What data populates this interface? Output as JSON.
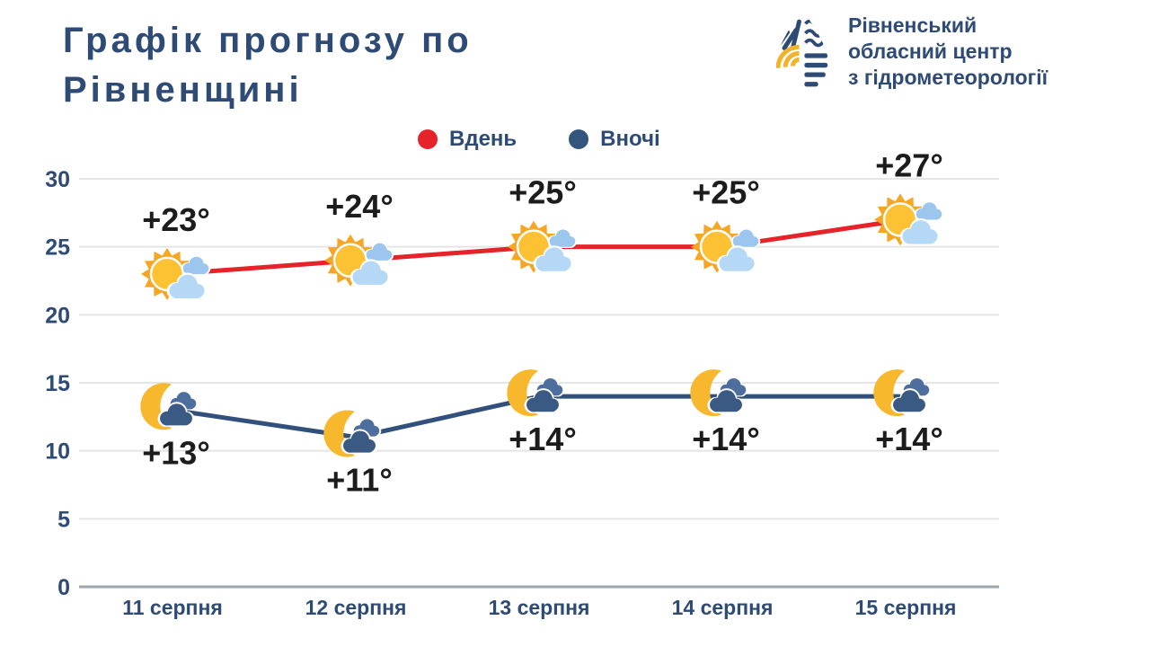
{
  "header": {
    "title": "Графік прогнозу по Рівненщині",
    "org_lines": [
      "Рівненський",
      "обласний центр",
      "з гідрометеорології"
    ]
  },
  "legend": {
    "day_label": "Вдень",
    "night_label": "Вночі",
    "day_color": "#e52329",
    "night_color": "#33557e"
  },
  "chart_data": {
    "type": "line",
    "title": "Графік прогнозу по Рівненщині",
    "x": [
      "11 серпня",
      "12 серпня",
      "13 серпня",
      "14 серпня",
      "15 серпня"
    ],
    "series": [
      {
        "name": "Вдень",
        "values": [
          23,
          24,
          25,
          25,
          27
        ],
        "labels": [
          "+23°",
          "+24°",
          "+25°",
          "+25°",
          "+27°"
        ],
        "color": "#e52329",
        "icon": "sun-cloud",
        "label_position": "above"
      },
      {
        "name": "Вночі",
        "values": [
          13,
          11,
          14,
          14,
          14
        ],
        "labels": [
          "+13°",
          "+11°",
          "+14°",
          "+14°",
          "+14°"
        ],
        "color": "#31517c",
        "icon": "moon-cloud",
        "label_position": "below"
      }
    ],
    "yticks": [
      0,
      5,
      10,
      15,
      20,
      25,
      30
    ],
    "ylim": [
      0,
      30
    ],
    "grid": true,
    "legend_position": "top-center"
  },
  "colors": {
    "navy_text": "#2d4b75",
    "temp_label": "#1c1c1c",
    "gridline": "#e4e5e7",
    "baseline": "#9da6af",
    "sun_ray": "#f7a623",
    "sun_disc": "#fcc234",
    "day_cloud_small": "#9cc6ee",
    "day_cloud_big": "#b5d8f6",
    "moon": "#f8b82e",
    "night_cloud_light": "#4e6f9d",
    "night_cloud_dark": "#3a5a84"
  }
}
